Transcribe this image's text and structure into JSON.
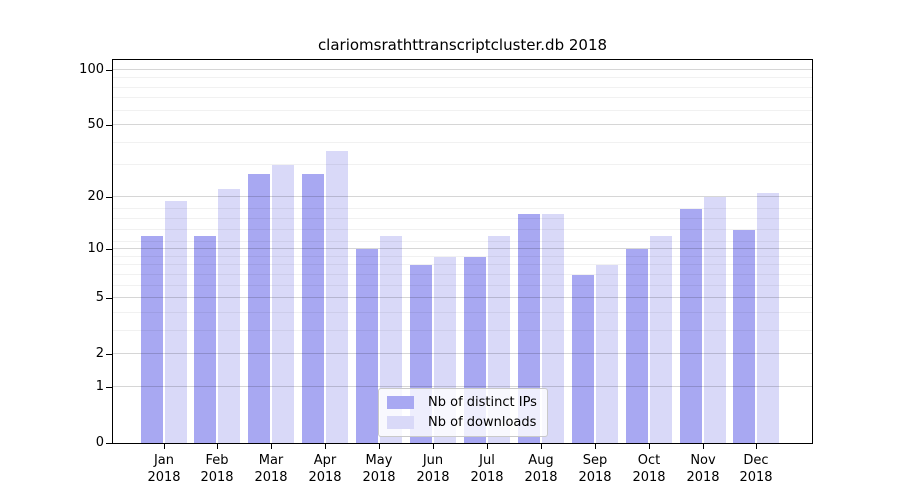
{
  "chart_data": {
    "type": "bar",
    "title": "clariomsrathttranscriptcluster.db 2018",
    "xlabel": "",
    "ylabel": "",
    "categories": [
      "Jan 2018",
      "Feb 2018",
      "Mar 2018",
      "Apr 2018",
      "May 2018",
      "Jun 2018",
      "Jul 2018",
      "Aug 2018",
      "Sep 2018",
      "Oct 2018",
      "Nov 2018",
      "Dec 2018"
    ],
    "series": [
      {
        "name": "Nb of distinct IPs",
        "color": "#a8a8f2",
        "values": [
          12,
          12,
          27,
          27,
          10,
          8,
          9,
          16,
          7,
          10,
          17,
          13
        ]
      },
      {
        "name": "Nb of downloads",
        "color": "#d9d9f8",
        "values": [
          19,
          22,
          30,
          36,
          12,
          9,
          12,
          16,
          8,
          12,
          20,
          21
        ]
      }
    ],
    "yscale": "log10(1+y)",
    "yticks": [
      0,
      1,
      2,
      5,
      10,
      20,
      50,
      100
    ],
    "minor_gridlines": [
      3,
      4,
      6,
      7,
      8,
      9,
      11,
      13,
      15,
      17,
      30,
      40,
      60,
      70,
      80,
      90
    ],
    "ylim": [
      0,
      113
    ],
    "grid": true,
    "legend_position": "lower center",
    "colors": {
      "frame": "#000000",
      "major_grid": "#d6d6d6",
      "minor_grid": "#f0f0f0",
      "background": "#ffffff"
    }
  }
}
